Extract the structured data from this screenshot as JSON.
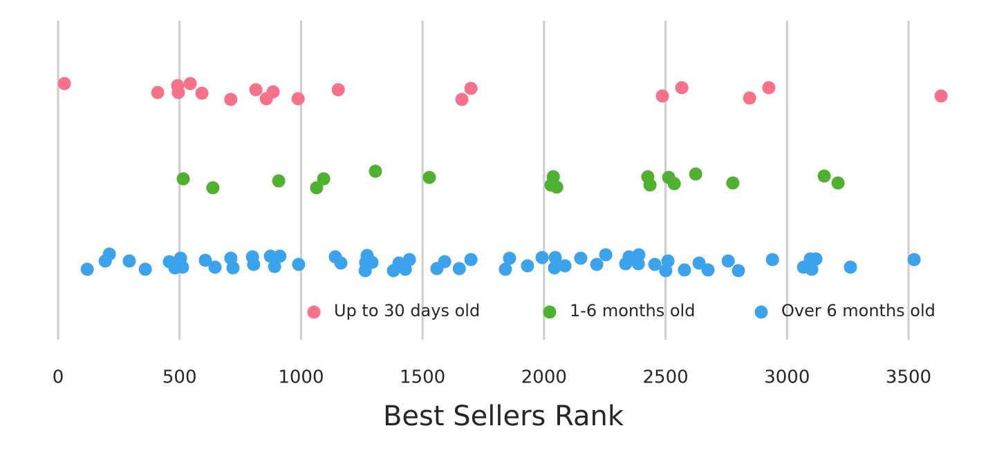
{
  "chart_data": {
    "type": "strip",
    "xlabel": "Best Sellers Rank",
    "xlim": [
      -5,
      3800
    ],
    "xticks": [
      0,
      500,
      1000,
      1500,
      2000,
      2500,
      3000,
      3500
    ],
    "grid": true,
    "legend": "lower right",
    "series": [
      {
        "name": "Up to 30 days old",
        "color": "#f77189",
        "values": [
          26,
          410,
          492,
          495,
          544,
          592,
          711,
          814,
          857,
          885,
          988,
          1153,
          1662,
          1699,
          2487,
          2567,
          2846,
          2925,
          3634
        ]
      },
      {
        "name": "1-6 months old",
        "color": "#50b131",
        "values": [
          515,
          637,
          908,
          1064,
          1093,
          1306,
          1528,
          2029,
          2038,
          2052,
          2427,
          2436,
          2513,
          2536,
          2624,
          2777,
          3153,
          3210
        ]
      },
      {
        "name": "Over 6 months old",
        "color": "#3ba3ec",
        "values": [
          120,
          194,
          211,
          293,
          359,
          458,
          481,
          504,
          512,
          606,
          646,
          711,
          720,
          800,
          805,
          874,
          891,
          913,
          990,
          1141,
          1164,
          1264,
          1266,
          1272,
          1292,
          1380,
          1403,
          1429,
          1446,
          1559,
          1591,
          1651,
          1699,
          1841,
          1858,
          1932,
          1992,
          2043,
          2046,
          2086,
          2151,
          2217,
          2254,
          2336,
          2350,
          2388,
          2390,
          2456,
          2501,
          2510,
          2578,
          2638,
          2675,
          2758,
          2800,
          2940,
          3068,
          3096,
          3102,
          3119,
          3261,
          3523
        ]
      }
    ]
  }
}
